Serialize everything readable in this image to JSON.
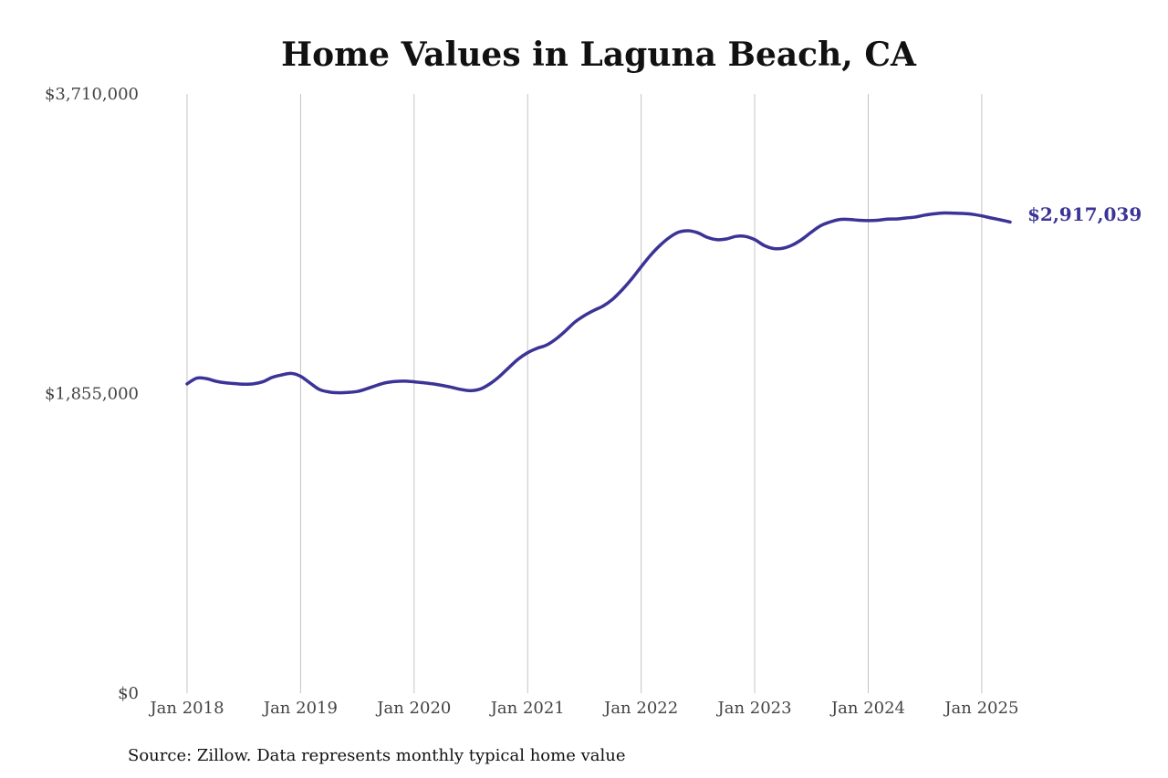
{
  "chart_data": {
    "type": "line",
    "title": "Home Values in Laguna Beach, CA",
    "source": "Source: Zillow. Data represents monthly typical home value",
    "ylim": [
      0,
      3710000
    ],
    "y_ticks": [
      {
        "value": 0,
        "label": "$0"
      },
      {
        "value": 1855000,
        "label": "$1,855,000"
      },
      {
        "value": 3710000,
        "label": "$3,710,000"
      }
    ],
    "x_ticks": [
      {
        "value": "2018-01",
        "label": "Jan 2018"
      },
      {
        "value": "2019-01",
        "label": "Jan 2019"
      },
      {
        "value": "2020-01",
        "label": "Jan 2020"
      },
      {
        "value": "2021-01",
        "label": "Jan 2021"
      },
      {
        "value": "2022-01",
        "label": "Jan 2022"
      },
      {
        "value": "2023-01",
        "label": "Jan 2023"
      },
      {
        "value": "2024-01",
        "label": "Jan 2024"
      },
      {
        "value": "2025-01",
        "label": "Jan 2025"
      }
    ],
    "xlim": [
      "2018-01",
      "2025-04"
    ],
    "grid": "vertical",
    "line_color": "#3b3496",
    "end_label": "$2,917,039",
    "series": [
      {
        "color": "#3b3496",
        "points": [
          [
            "2018-01",
            1915000
          ],
          [
            "2018-02",
            1950000
          ],
          [
            "2018-03",
            1948000
          ],
          [
            "2018-04",
            1932000
          ],
          [
            "2018-05",
            1922000
          ],
          [
            "2018-06",
            1917000
          ],
          [
            "2018-07",
            1913000
          ],
          [
            "2018-08",
            1915000
          ],
          [
            "2018-09",
            1928000
          ],
          [
            "2018-10",
            1955000
          ],
          [
            "2018-11",
            1970000
          ],
          [
            "2018-12",
            1980000
          ],
          [
            "2019-01",
            1962000
          ],
          [
            "2019-02",
            1920000
          ],
          [
            "2019-03",
            1880000
          ],
          [
            "2019-04",
            1865000
          ],
          [
            "2019-05",
            1860000
          ],
          [
            "2019-06",
            1862000
          ],
          [
            "2019-07",
            1868000
          ],
          [
            "2019-08",
            1885000
          ],
          [
            "2019-09",
            1905000
          ],
          [
            "2019-10",
            1922000
          ],
          [
            "2019-11",
            1930000
          ],
          [
            "2019-12",
            1932000
          ],
          [
            "2020-01",
            1928000
          ],
          [
            "2020-02",
            1922000
          ],
          [
            "2020-03",
            1915000
          ],
          [
            "2020-04",
            1905000
          ],
          [
            "2020-05",
            1893000
          ],
          [
            "2020-06",
            1880000
          ],
          [
            "2020-07",
            1873000
          ],
          [
            "2020-08",
            1883000
          ],
          [
            "2020-09",
            1915000
          ],
          [
            "2020-10",
            1960000
          ],
          [
            "2020-11",
            2015000
          ],
          [
            "2020-12",
            2068000
          ],
          [
            "2021-01",
            2108000
          ],
          [
            "2021-02",
            2135000
          ],
          [
            "2021-03",
            2155000
          ],
          [
            "2021-04",
            2193000
          ],
          [
            "2021-05",
            2243000
          ],
          [
            "2021-06",
            2298000
          ],
          [
            "2021-07",
            2338000
          ],
          [
            "2021-08",
            2370000
          ],
          [
            "2021-09",
            2398000
          ],
          [
            "2021-10",
            2440000
          ],
          [
            "2021-11",
            2498000
          ],
          [
            "2021-12",
            2565000
          ],
          [
            "2022-01",
            2640000
          ],
          [
            "2022-02",
            2712000
          ],
          [
            "2022-03",
            2773000
          ],
          [
            "2022-04",
            2822000
          ],
          [
            "2022-05",
            2855000
          ],
          [
            "2022-06",
            2863000
          ],
          [
            "2022-07",
            2850000
          ],
          [
            "2022-08",
            2822000
          ],
          [
            "2022-09",
            2808000
          ],
          [
            "2022-10",
            2812000
          ],
          [
            "2022-11",
            2828000
          ],
          [
            "2022-12",
            2828000
          ],
          [
            "2023-01",
            2808000
          ],
          [
            "2023-02",
            2772000
          ],
          [
            "2023-03",
            2753000
          ],
          [
            "2023-04",
            2755000
          ],
          [
            "2023-05",
            2775000
          ],
          [
            "2023-06",
            2810000
          ],
          [
            "2023-07",
            2855000
          ],
          [
            "2023-08",
            2895000
          ],
          [
            "2023-09",
            2918000
          ],
          [
            "2023-10",
            2933000
          ],
          [
            "2023-11",
            2933000
          ],
          [
            "2023-12",
            2928000
          ],
          [
            "2024-01",
            2926000
          ],
          [
            "2024-02",
            2928000
          ],
          [
            "2024-03",
            2935000
          ],
          [
            "2024-04",
            2936000
          ],
          [
            "2024-05",
            2942000
          ],
          [
            "2024-06",
            2948000
          ],
          [
            "2024-07",
            2960000
          ],
          [
            "2024-08",
            2968000
          ],
          [
            "2024-09",
            2973000
          ],
          [
            "2024-10",
            2972000
          ],
          [
            "2024-11",
            2970000
          ],
          [
            "2024-12",
            2965000
          ],
          [
            "2025-01",
            2955000
          ],
          [
            "2025-02",
            2942000
          ],
          [
            "2025-03",
            2930000
          ],
          [
            "2025-04",
            2917039
          ]
        ]
      }
    ]
  }
}
